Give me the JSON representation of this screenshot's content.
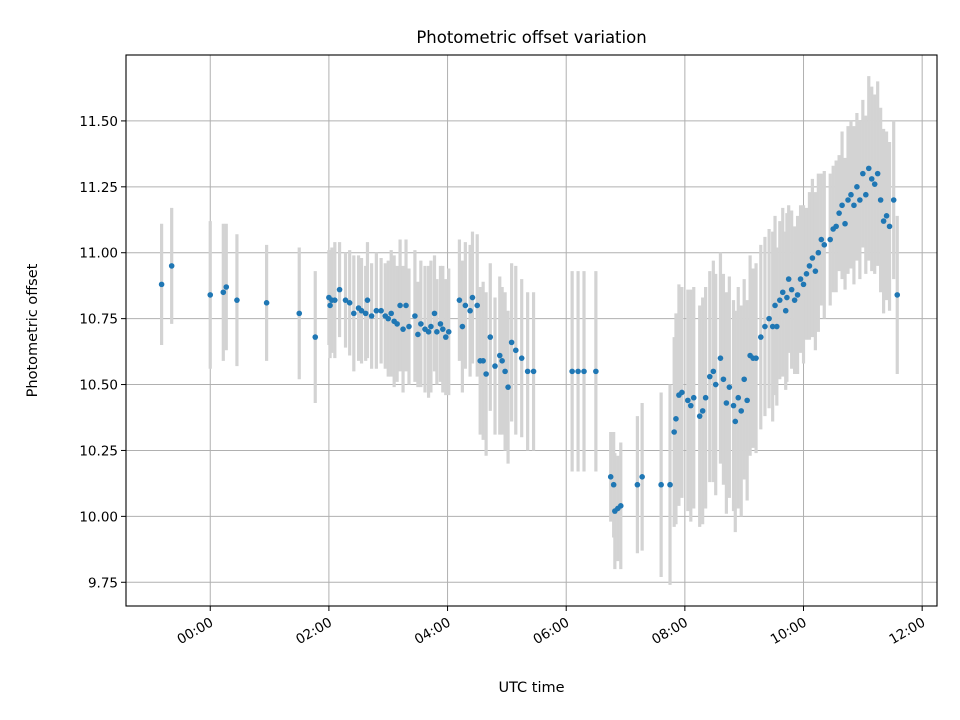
{
  "chart_data": {
    "type": "scatter",
    "title": "Photometric offset variation",
    "xlabel": "UTC time",
    "ylabel": "Photometric offset",
    "x_tick_labels": [
      "00:00",
      "02:00",
      "04:00",
      "06:00",
      "08:00",
      "10:00",
      "12:00"
    ],
    "x_tick_hours": [
      0,
      2,
      4,
      6,
      8,
      10,
      12
    ],
    "y_tick_labels": [
      "9.75",
      "10.00",
      "10.25",
      "10.50",
      "10.75",
      "11.00",
      "11.25",
      "11.50"
    ],
    "y_tick_values": [
      9.75,
      10.0,
      10.25,
      10.5,
      10.75,
      11.0,
      11.25,
      11.5
    ],
    "xlim_hours": [
      -1.42,
      12.25
    ],
    "ylim": [
      9.66,
      11.75
    ],
    "grid": true,
    "colors": {
      "points": "#1f77b4",
      "errorbars": "#d3d3d3",
      "grid": "#b0b0b0"
    },
    "series": [
      {
        "x_hours": [
          -0.82,
          -0.65,
          0.0,
          0.22,
          0.27,
          0.45,
          0.95,
          1.5,
          1.77,
          2.0,
          2.02,
          2.05,
          2.1,
          2.18,
          2.28,
          2.35,
          2.42,
          2.5,
          2.55,
          2.62,
          2.65,
          2.72,
          2.8,
          2.88,
          2.95,
          3.0,
          3.05,
          3.1,
          3.15,
          3.2,
          3.25,
          3.3,
          3.35,
          3.45,
          3.5,
          3.55,
          3.62,
          3.68,
          3.72,
          3.78,
          3.82,
          3.88,
          3.92,
          3.97,
          4.02,
          4.2,
          4.25,
          4.3,
          4.38,
          4.42,
          4.5,
          4.55,
          4.6,
          4.65,
          4.72,
          4.8,
          4.88,
          4.92,
          4.97,
          5.02,
          5.08,
          5.15,
          5.25,
          5.35,
          5.45,
          6.1,
          6.2,
          6.3,
          6.5,
          6.75,
          6.8,
          6.82,
          6.87,
          6.92,
          7.2,
          7.28,
          7.6,
          7.75,
          7.82,
          7.85,
          7.9,
          7.95,
          8.05,
          8.1,
          8.15,
          8.25,
          8.3,
          8.35,
          8.42,
          8.48,
          8.52,
          8.6,
          8.65,
          8.7,
          8.75,
          8.82,
          8.85,
          8.9,
          8.95,
          9.0,
          9.05,
          9.1,
          9.15,
          9.2,
          9.28,
          9.35,
          9.42,
          9.48,
          9.52,
          9.55,
          9.6,
          9.65,
          9.7,
          9.72,
          9.75,
          9.8,
          9.85,
          9.9,
          9.95,
          10.0,
          10.05,
          10.1,
          10.15,
          10.2,
          10.25,
          10.3,
          10.35,
          10.45,
          10.5,
          10.55,
          10.6,
          10.65,
          10.7,
          10.75,
          10.8,
          10.85,
          10.9,
          10.95,
          11.0,
          11.05,
          11.1,
          11.15,
          11.2,
          11.25,
          11.3,
          11.35,
          11.4,
          11.45,
          11.52,
          11.58
        ],
        "y": [
          10.88,
          10.95,
          10.84,
          10.85,
          10.87,
          10.82,
          10.81,
          10.77,
          10.68,
          10.83,
          10.8,
          10.82,
          10.82,
          10.86,
          10.82,
          10.81,
          10.77,
          10.79,
          10.78,
          10.77,
          10.82,
          10.76,
          10.78,
          10.78,
          10.76,
          10.75,
          10.77,
          10.74,
          10.73,
          10.8,
          10.71,
          10.8,
          10.72,
          10.76,
          10.69,
          10.73,
          10.71,
          10.7,
          10.72,
          10.77,
          10.7,
          10.73,
          10.71,
          10.68,
          10.7,
          10.82,
          10.72,
          10.8,
          10.78,
          10.83,
          10.8,
          10.59,
          10.59,
          10.54,
          10.68,
          10.57,
          10.61,
          10.59,
          10.55,
          10.49,
          10.66,
          10.63,
          10.6,
          10.55,
          10.55,
          10.55,
          10.55,
          10.55,
          10.55,
          10.15,
          10.12,
          10.02,
          10.03,
          10.04,
          10.12,
          10.15,
          10.12,
          10.12,
          10.32,
          10.37,
          10.46,
          10.47,
          10.44,
          10.42,
          10.45,
          10.38,
          10.4,
          10.45,
          10.53,
          10.55,
          10.5,
          10.6,
          10.52,
          10.43,
          10.49,
          10.42,
          10.36,
          10.45,
          10.4,
          10.52,
          10.44,
          10.61,
          10.6,
          10.6,
          10.68,
          10.72,
          10.75,
          10.72,
          10.8,
          10.72,
          10.82,
          10.85,
          10.78,
          10.83,
          10.9,
          10.86,
          10.82,
          10.84,
          10.9,
          10.88,
          10.92,
          10.95,
          10.98,
          10.93,
          11.0,
          11.05,
          11.03,
          11.05,
          11.09,
          11.1,
          11.15,
          11.18,
          11.11,
          11.2,
          11.22,
          11.18,
          11.25,
          11.2,
          11.3,
          11.22,
          11.32,
          11.28,
          11.26,
          11.3,
          11.2,
          11.12,
          11.14,
          11.1,
          11.2,
          10.84
        ],
        "err": [
          0.23,
          0.22,
          0.28,
          0.26,
          0.24,
          0.25,
          0.22,
          0.25,
          0.25,
          0.18,
          0.2,
          0.2,
          0.22,
          0.18,
          0.18,
          0.2,
          0.22,
          0.2,
          0.2,
          0.18,
          0.22,
          0.2,
          0.22,
          0.2,
          0.2,
          0.22,
          0.24,
          0.25,
          0.22,
          0.25,
          0.24,
          0.25,
          0.22,
          0.25,
          0.2,
          0.24,
          0.24,
          0.25,
          0.25,
          0.22,
          0.2,
          0.22,
          0.24,
          0.22,
          0.24,
          0.23,
          0.25,
          0.24,
          0.25,
          0.25,
          0.27,
          0.28,
          0.3,
          0.31,
          0.28,
          0.26,
          0.3,
          0.28,
          0.3,
          0.29,
          0.3,
          0.32,
          0.3,
          0.3,
          0.3,
          0.38,
          0.38,
          0.38,
          0.38,
          0.17,
          0.2,
          0.22,
          0.2,
          0.24,
          0.26,
          0.28,
          0.35,
          0.38,
          0.36,
          0.4,
          0.42,
          0.4,
          0.42,
          0.44,
          0.42,
          0.42,
          0.43,
          0.42,
          0.4,
          0.42,
          0.42,
          0.4,
          0.4,
          0.42,
          0.42,
          0.4,
          0.42,
          0.42,
          0.4,
          0.38,
          0.38,
          0.38,
          0.34,
          0.36,
          0.35,
          0.34,
          0.34,
          0.36,
          0.34,
          0.3,
          0.3,
          0.32,
          0.3,
          0.32,
          0.28,
          0.3,
          0.28,
          0.3,
          0.28,
          0.3,
          0.25,
          0.28,
          0.3,
          0.3,
          0.3,
          0.25,
          0.28,
          0.25,
          0.24,
          0.25,
          0.22,
          0.28,
          0.25,
          0.28,
          0.28,
          0.3,
          0.28,
          0.3,
          0.28,
          0.3,
          0.35,
          0.35,
          0.34,
          0.35,
          0.35,
          0.35,
          0.32,
          0.32,
          0.3,
          0.3
        ]
      }
    ]
  }
}
